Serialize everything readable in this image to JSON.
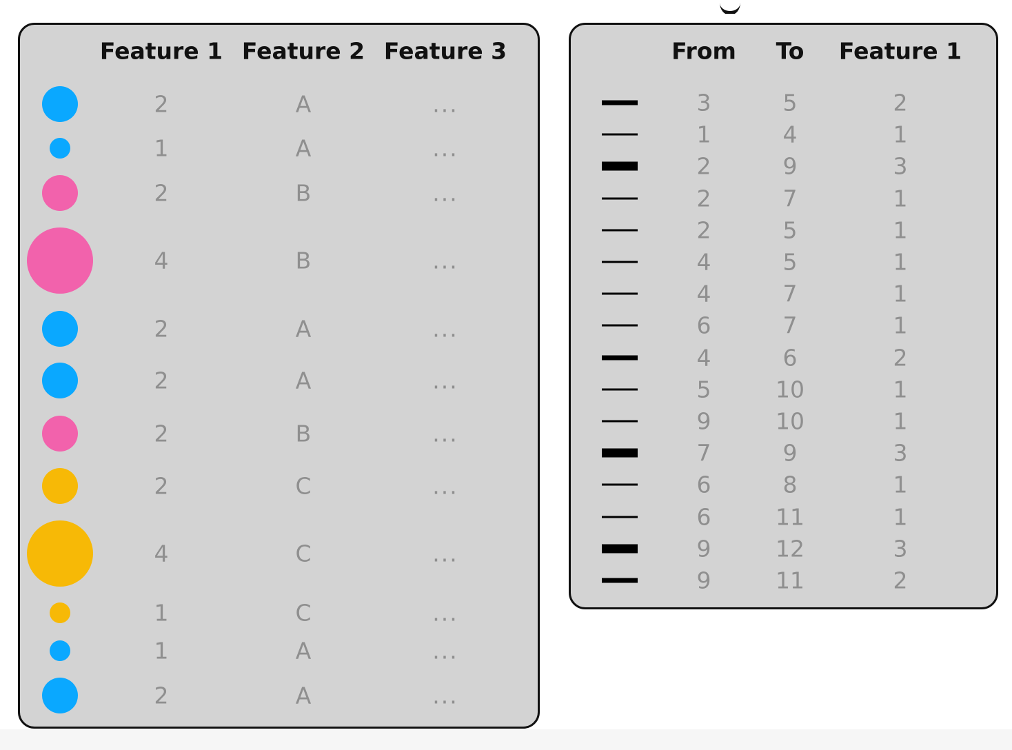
{
  "colors": {
    "A": "#0aa8ff",
    "B": "#f262ac",
    "C": "#f7b906"
  },
  "node_table": {
    "headers": [
      "Feature 1",
      "Feature 2",
      "Feature 3"
    ],
    "ellipsis": "...",
    "rows": [
      {
        "feature1": "2",
        "feature2": "A",
        "feature3": "...",
        "size": 2
      },
      {
        "feature1": "1",
        "feature2": "A",
        "feature3": "...",
        "size": 1
      },
      {
        "feature1": "2",
        "feature2": "B",
        "feature3": "...",
        "size": 2
      },
      {
        "feature1": "4",
        "feature2": "B",
        "feature3": "...",
        "size": 4
      },
      {
        "feature1": "2",
        "feature2": "A",
        "feature3": "...",
        "size": 2
      },
      {
        "feature1": "2",
        "feature2": "A",
        "feature3": "...",
        "size": 2
      },
      {
        "feature1": "2",
        "feature2": "B",
        "feature3": "...",
        "size": 2
      },
      {
        "feature1": "2",
        "feature2": "C",
        "feature3": "...",
        "size": 2
      },
      {
        "feature1": "4",
        "feature2": "C",
        "feature3": "...",
        "size": 4
      },
      {
        "feature1": "1",
        "feature2": "C",
        "feature3": "...",
        "size": 1
      },
      {
        "feature1": "1",
        "feature2": "A",
        "feature3": "...",
        "size": 1
      },
      {
        "feature1": "2",
        "feature2": "A",
        "feature3": "...",
        "size": 2
      }
    ]
  },
  "edge_table": {
    "headers": [
      "From",
      "To",
      "Feature 1"
    ],
    "rows": [
      {
        "from": "3",
        "to": "5",
        "feature1": "2",
        "weight": 2
      },
      {
        "from": "1",
        "to": "4",
        "feature1": "1",
        "weight": 1
      },
      {
        "from": "2",
        "to": "9",
        "feature1": "3",
        "weight": 3
      },
      {
        "from": "2",
        "to": "7",
        "feature1": "1",
        "weight": 1
      },
      {
        "from": "2",
        "to": "5",
        "feature1": "1",
        "weight": 1
      },
      {
        "from": "4",
        "to": "5",
        "feature1": "1",
        "weight": 1
      },
      {
        "from": "4",
        "to": "7",
        "feature1": "1",
        "weight": 1
      },
      {
        "from": "6",
        "to": "7",
        "feature1": "1",
        "weight": 1
      },
      {
        "from": "4",
        "to": "6",
        "feature1": "2",
        "weight": 2
      },
      {
        "from": "5",
        "to": "10",
        "feature1": "1",
        "weight": 1
      },
      {
        "from": "9",
        "to": "10",
        "feature1": "1",
        "weight": 1
      },
      {
        "from": "7",
        "to": "9",
        "feature1": "3",
        "weight": 3
      },
      {
        "from": "6",
        "to": "8",
        "feature1": "1",
        "weight": 1
      },
      {
        "from": "6",
        "to": "11",
        "feature1": "1",
        "weight": 1
      },
      {
        "from": "9",
        "to": "12",
        "feature1": "3",
        "weight": 3
      },
      {
        "from": "9",
        "to": "11",
        "feature1": "2",
        "weight": 2
      }
    ]
  }
}
